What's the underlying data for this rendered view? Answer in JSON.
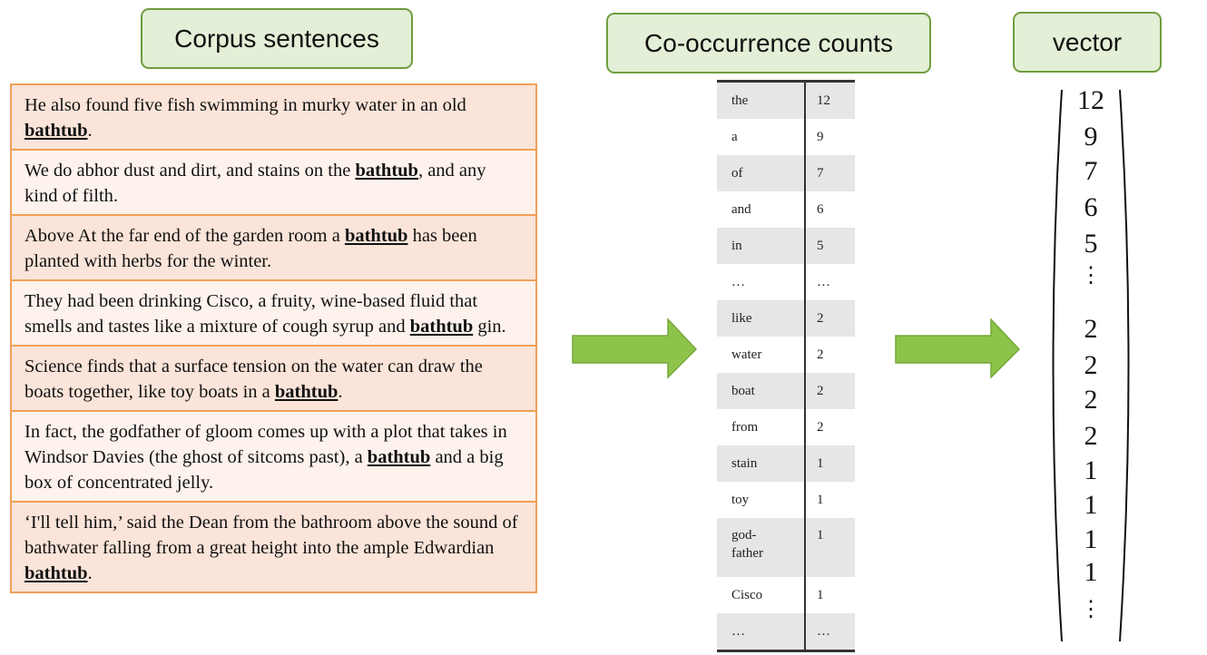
{
  "labels": {
    "corpus": "Corpus sentences",
    "counts": "Co-occurrence counts",
    "vector": "vector"
  },
  "sentences": [
    {
      "before": "He also found five fish swimming in murky water in an old ",
      "keyword": "bathtub",
      "after": "."
    },
    {
      "before": "We do abhor dust and dirt, and stains on the ",
      "keyword": "bathtub",
      "after": ", and any kind of filth."
    },
    {
      "before": "Above At the far end of the garden room a ",
      "keyword": "bathtub",
      "after": " has been planted with herbs for the winter."
    },
    {
      "before": "They had been drinking Cisco, a fruity, wine-based fluid that smells and tastes like a mixture of cough syrup and ",
      "keyword": "bathtub",
      "after": " gin."
    },
    {
      "before": "Science finds that a surface tension on the water can draw the boats together, like toy boats in a ",
      "keyword": "bathtub",
      "after": "."
    },
    {
      "before": "In fact, the godfather of gloom comes up with a plot that takes in Windsor Davies (the ghost of sitcoms past), a ",
      "keyword": "bathtub",
      "after": " and a big box of concentrated jelly."
    },
    {
      "before": "‘I'll tell him,’ said the Dean from the bathroom above the sound of bathwater falling from a great height into the ample Edwardian ",
      "keyword": "bathtub",
      "after": "."
    }
  ],
  "counts": [
    {
      "word": "the",
      "count": "12"
    },
    {
      "word": "a",
      "count": "9"
    },
    {
      "word": "of",
      "count": "7"
    },
    {
      "word": "and",
      "count": "6"
    },
    {
      "word": "in",
      "count": "5"
    },
    {
      "word": "…",
      "count": "…"
    },
    {
      "word": "like",
      "count": "2"
    },
    {
      "word": "water",
      "count": "2"
    },
    {
      "word": "boat",
      "count": "2"
    },
    {
      "word": "from",
      "count": "2"
    },
    {
      "word": "stain",
      "count": "1"
    },
    {
      "word": "toy",
      "count": "1"
    },
    {
      "word": "god-\nfather",
      "count": "1"
    },
    {
      "word": "Cisco",
      "count": "1"
    },
    {
      "word": "…",
      "count": "…"
    }
  ],
  "vector": [
    "12",
    "9",
    "7",
    "6",
    "5",
    "⋮",
    "2",
    "2",
    "2",
    "2",
    "1",
    "1",
    "1",
    "1",
    "⋮"
  ],
  "colors": {
    "label_fill": "#e3efd6",
    "label_border": "#6f9c3f",
    "sentence_border": "#f0a058",
    "sentence_fill": "#fbe4d9",
    "arrow_fill": "#8dc34a"
  }
}
